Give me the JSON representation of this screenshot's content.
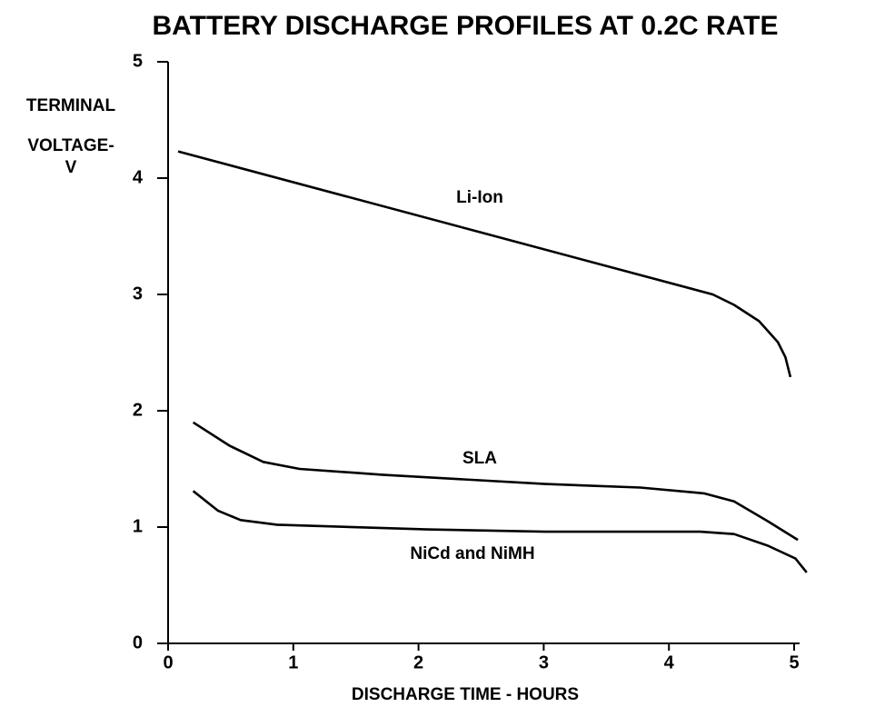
{
  "chart_data": {
    "type": "line",
    "title": "BATTERY DISCHARGE PROFILES AT 0.2C RATE",
    "xlabel": "DISCHARGE TIME - HOURS",
    "ylabel": [
      "TERMINAL",
      "VOLTAGE-",
      "V"
    ],
    "xlim": [
      0,
      5
    ],
    "ylim": [
      0,
      5
    ],
    "xticks": [
      0,
      1,
      2,
      3,
      4,
      5
    ],
    "yticks": [
      0,
      1,
      2,
      3,
      4,
      5
    ],
    "grid": false,
    "series": [
      {
        "name": "Li-Ion",
        "color": "#000000",
        "x": [
          0.08,
          4.35,
          4.52,
          4.72,
          4.87,
          4.93,
          4.97
        ],
        "values": [
          4.23,
          3.0,
          2.91,
          2.77,
          2.59,
          2.46,
          2.29
        ]
      },
      {
        "name": "SLA",
        "color": "#000000",
        "x": [
          0.2,
          0.49,
          0.76,
          1.05,
          1.71,
          3.01,
          3.77,
          4.28,
          4.52,
          4.79,
          5.03
        ],
        "values": [
          1.9,
          1.7,
          1.56,
          1.5,
          1.45,
          1.37,
          1.34,
          1.29,
          1.22,
          1.05,
          0.89
        ]
      },
      {
        "name": "NiCd and NiMH",
        "color": "#000000",
        "x": [
          0.2,
          0.4,
          0.58,
          0.87,
          2.07,
          3.01,
          4.25,
          4.52,
          4.79,
          5.01,
          5.1
        ],
        "values": [
          1.31,
          1.14,
          1.06,
          1.02,
          0.98,
          0.96,
          0.96,
          0.94,
          0.84,
          0.73,
          0.61
        ]
      }
    ]
  }
}
